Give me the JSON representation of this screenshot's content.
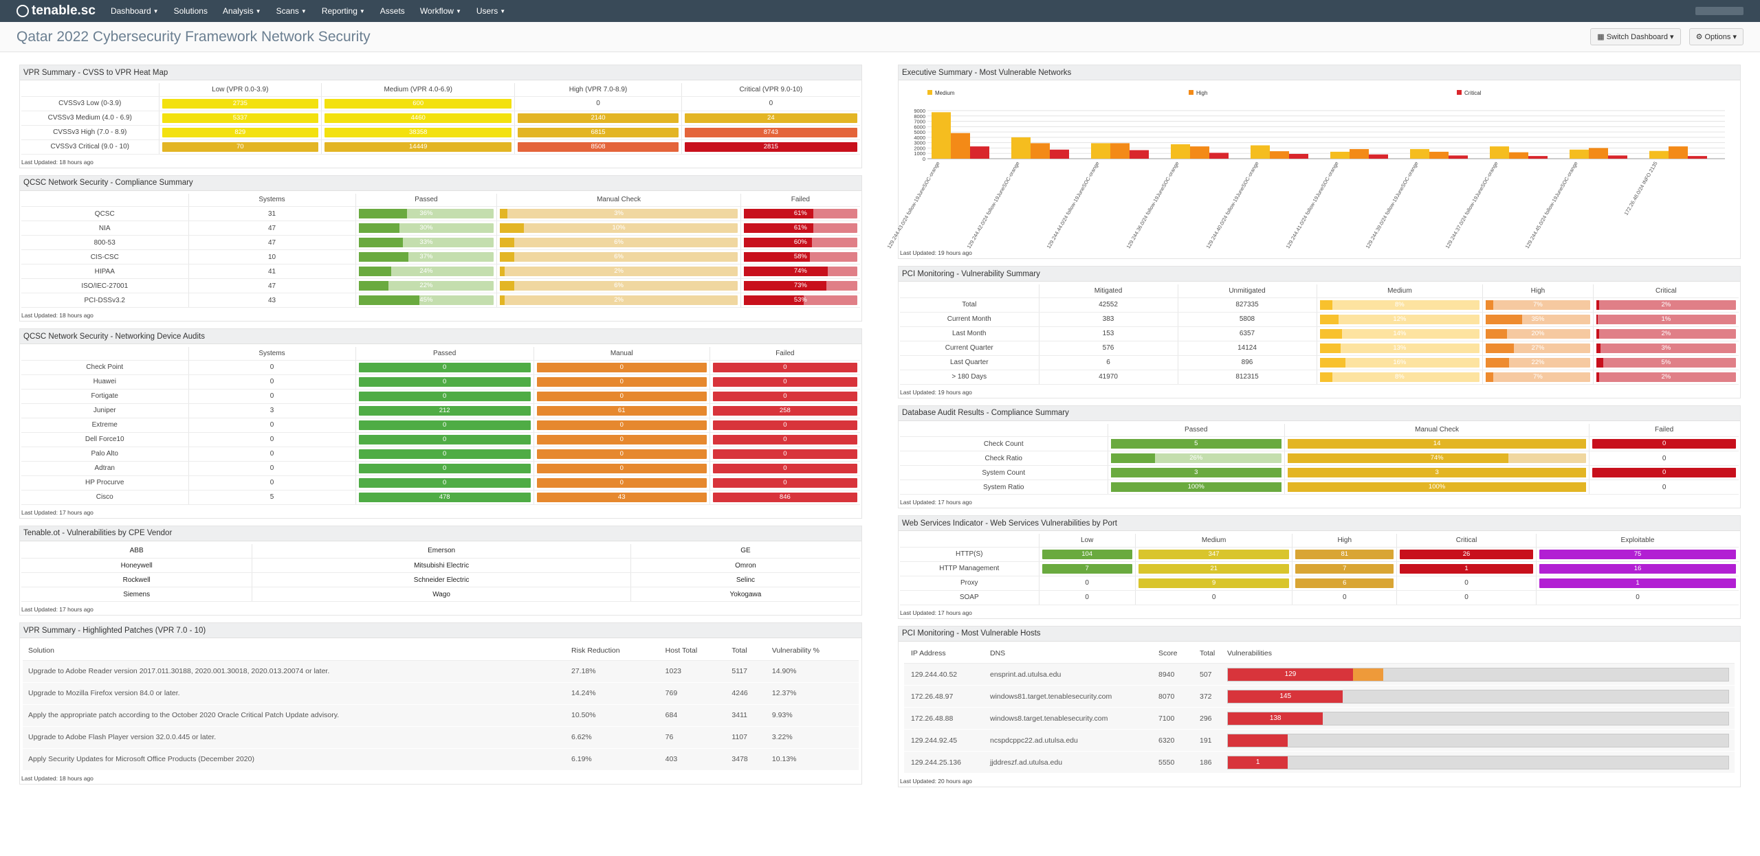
{
  "app": {
    "logo": "tenable.sc"
  },
  "nav": [
    {
      "label": "Dashboard",
      "caret": true
    },
    {
      "label": "Solutions",
      "caret": false
    },
    {
      "label": "Analysis",
      "caret": true
    },
    {
      "label": "Scans",
      "caret": true
    },
    {
      "label": "Reporting",
      "caret": true
    },
    {
      "label": "Assets",
      "caret": false
    },
    {
      "label": "Workflow",
      "caret": true
    },
    {
      "label": "Users",
      "caret": true
    }
  ],
  "page": {
    "title": "Qatar 2022 Cybersecurity Framework Network Security",
    "switch_label": "Switch Dashboard",
    "options_label": "Options"
  },
  "colors": {
    "yellow": "#f3e10f",
    "gold": "#e3b524",
    "orange": "#e4643a",
    "red": "#c8101c",
    "green": "#6aaa3f",
    "lightgreen": "#c4deae",
    "tan": "#f0d7a0",
    "pink": "#e07f87",
    "dkorange": "#e6882e",
    "purple": "#b21fd3"
  },
  "vpr_heatmap": {
    "title": "VPR Summary - CVSS to VPR Heat Map",
    "columns": [
      "",
      "Low (VPR 0.0-3.9)",
      "Medium (VPR 4.0-6.9)",
      "High (VPR 7.0-8.9)",
      "Critical (VPR 9.0-10)"
    ],
    "rows": [
      {
        "label": "CVSSv3 Low (0-3.9)",
        "cells": [
          {
            "v": "2735",
            "c": "#f3e10f"
          },
          {
            "v": "600",
            "c": "#f3e10f"
          },
          {
            "v": "0",
            "c": ""
          },
          {
            "v": "0",
            "c": ""
          }
        ]
      },
      {
        "label": "CVSSv3 Medium (4.0 - 6.9)",
        "cells": [
          {
            "v": "5337",
            "c": "#f3e10f"
          },
          {
            "v": "4460",
            "c": "#f3e10f"
          },
          {
            "v": "2140",
            "c": "#e3b524"
          },
          {
            "v": "24",
            "c": "#e3b524"
          }
        ]
      },
      {
        "label": "CVSSv3 High (7.0 - 8.9)",
        "cells": [
          {
            "v": "829",
            "c": "#f3e10f"
          },
          {
            "v": "38358",
            "c": "#f3e10f"
          },
          {
            "v": "6815",
            "c": "#e3b524"
          },
          {
            "v": "8743",
            "c": "#e4643a"
          }
        ]
      },
      {
        "label": "CVSSv3 Critical (9.0 - 10)",
        "cells": [
          {
            "v": "70",
            "c": "#e3b524"
          },
          {
            "v": "14449",
            "c": "#e3b524"
          },
          {
            "v": "8508",
            "c": "#e4643a"
          },
          {
            "v": "2815",
            "c": "#c8101c"
          }
        ]
      }
    ],
    "updated": "Last Updated: 18 hours ago"
  },
  "compliance": {
    "title": "QCSC Network Security - Compliance Summary",
    "columns": [
      "",
      "Systems",
      "Passed",
      "Manual Check",
      "Failed"
    ],
    "rows": [
      {
        "label": "QCSC",
        "systems": "31",
        "passed": "36%",
        "p": 36,
        "manual": "3%",
        "m": 3,
        "failed": "61%",
        "f": 61
      },
      {
        "label": "NIA",
        "systems": "47",
        "passed": "30%",
        "p": 30,
        "manual": "10%",
        "m": 10,
        "failed": "61%",
        "f": 61
      },
      {
        "label": "800-53",
        "systems": "47",
        "passed": "33%",
        "p": 33,
        "manual": "6%",
        "m": 6,
        "failed": "60%",
        "f": 60
      },
      {
        "label": "CIS-CSC",
        "systems": "10",
        "passed": "37%",
        "p": 37,
        "manual": "6%",
        "m": 6,
        "failed": "58%",
        "f": 58
      },
      {
        "label": "HIPAA",
        "systems": "41",
        "passed": "24%",
        "p": 24,
        "manual": "2%",
        "m": 2,
        "failed": "74%",
        "f": 74
      },
      {
        "label": "ISO/IEC-27001",
        "systems": "47",
        "passed": "22%",
        "p": 22,
        "manual": "6%",
        "m": 6,
        "failed": "73%",
        "f": 73
      },
      {
        "label": "PCI-DSSv3.2",
        "systems": "43",
        "passed": "45%",
        "p": 45,
        "manual": "2%",
        "m": 2,
        "failed": "53%",
        "f": 53
      }
    ],
    "updated": "Last Updated: 18 hours ago"
  },
  "device_audits": {
    "title": "QCSC Network Security - Networking Device Audits",
    "columns": [
      "",
      "Systems",
      "Passed",
      "Manual",
      "Failed"
    ],
    "rows": [
      {
        "label": "Check Point",
        "systems": "0",
        "passed": "0",
        "manual": "0",
        "failed": "0"
      },
      {
        "label": "Huawei",
        "systems": "0",
        "passed": "0",
        "manual": "0",
        "failed": "0"
      },
      {
        "label": "Fortigate",
        "systems": "0",
        "passed": "0",
        "manual": "0",
        "failed": "0"
      },
      {
        "label": "Juniper",
        "systems": "3",
        "passed": "212",
        "manual": "61",
        "failed": "258"
      },
      {
        "label": "Extreme",
        "systems": "0",
        "passed": "0",
        "manual": "0",
        "failed": "0"
      },
      {
        "label": "Dell Force10",
        "systems": "0",
        "passed": "0",
        "manual": "0",
        "failed": "0"
      },
      {
        "label": "Palo Alto",
        "systems": "0",
        "passed": "0",
        "manual": "0",
        "failed": "0"
      },
      {
        "label": "Adtran",
        "systems": "0",
        "passed": "0",
        "manual": "0",
        "failed": "0"
      },
      {
        "label": "HP Procurve",
        "systems": "0",
        "passed": "0",
        "manual": "0",
        "failed": "0"
      },
      {
        "label": "Cisco",
        "systems": "5",
        "passed": "478",
        "manual": "43",
        "failed": "846"
      }
    ],
    "updated": "Last Updated: 17 hours ago"
  },
  "cpe": {
    "title": "Tenable.ot - Vulnerabilities by CPE Vendor",
    "rows": [
      [
        "ABB",
        "Emerson",
        "GE"
      ],
      [
        "Honeywell",
        "Mitsubishi Electric",
        "Omron"
      ],
      [
        "Rockwell",
        "Schneider Electric",
        "Selinc"
      ],
      [
        "Siemens",
        "Wago",
        "Yokogawa"
      ]
    ],
    "updated": "Last Updated: 17 hours ago"
  },
  "patches": {
    "title": "VPR Summary - Highlighted Patches (VPR 7.0 - 10)",
    "columns": [
      "Solution",
      "Risk Reduction",
      "Host Total",
      "Total",
      "Vulnerability %"
    ],
    "rows": [
      [
        "Upgrade to Adobe Reader version 2017.011.30188, 2020.001.30018, 2020.013.20074 or later.",
        "27.18%",
        "1023",
        "5117",
        "14.90%"
      ],
      [
        "Upgrade to Mozilla Firefox version 84.0 or later.",
        "14.24%",
        "769",
        "4246",
        "12.37%"
      ],
      [
        "Apply the appropriate patch according to the October 2020 Oracle Critical Patch Update advisory.",
        "10.50%",
        "684",
        "3411",
        "9.93%"
      ],
      [
        "Upgrade to Adobe Flash Player version 32.0.0.445 or later.",
        "6.62%",
        "76",
        "1107",
        "3.22%"
      ],
      [
        "Apply Security Updates for Microsoft Office Products (December 2020)",
        "6.19%",
        "403",
        "3478",
        "10.13%"
      ]
    ],
    "updated": "Last Updated: 18 hours ago"
  },
  "exec_summary": {
    "title": "Executive Summary - Most Vulnerable Networks",
    "updated": "Last Updated: 19 hours ago"
  },
  "chart_data": {
    "type": "bar",
    "title": "Executive Summary - Most Vulnerable Networks",
    "legend": [
      "Medium",
      "High",
      "Critical"
    ],
    "legend_colors": [
      "#f5bd1f",
      "#f38a17",
      "#d9262c"
    ],
    "ylim": [
      0,
      9000
    ],
    "yticks": [
      "9000",
      "8000",
      "7000",
      "6000",
      "5000",
      "4000",
      "3000",
      "2000",
      "1000",
      "0"
    ],
    "categories": [
      "129.244.43.0/24 follow-19JuneSOC-orange",
      "129.244.42.0/24 follow-19JuneSOC-orange",
      "129.244.44.0/24 follow-19JuneSOC-orange",
      "129.244.36.0/24 follow-19JuneSOC-orange",
      "129.244.40.0/24 follow-19JuneSOC-orange",
      "129.244.41.0/24 follow-19JuneSOC-orange",
      "129.244.39.0/24 follow-19JuneSOC-orange",
      "129.244.37.0/24 follow-19JuneSOC-orange",
      "129.244.45.0/24 follow-19JuneSOC-orange",
      "172.26.48.0/24 INFO 2135"
    ],
    "series": [
      {
        "name": "Medium",
        "values": [
          8700,
          4000,
          2900,
          2700,
          2500,
          1300,
          1800,
          2300,
          1700,
          1450
        ]
      },
      {
        "name": "High",
        "values": [
          4800,
          2900,
          2900,
          2300,
          1400,
          1800,
          1300,
          1200,
          2000,
          2300
        ]
      },
      {
        "name": "Critical",
        "values": [
          2300,
          1700,
          1600,
          1100,
          900,
          800,
          600,
          500,
          600,
          500
        ]
      }
    ]
  },
  "pci_vuln": {
    "title": "PCI Monitoring - Vulnerability Summary",
    "columns": [
      "",
      "Mitigated",
      "Unmitigated",
      "Medium",
      "High",
      "Critical"
    ],
    "rows": [
      {
        "label": "Total",
        "mit": "42552",
        "unmit": "827335",
        "med": "8%",
        "m": 8,
        "high": "7%",
        "h": 7,
        "crit": "2%",
        "c": 2
      },
      {
        "label": "Current Month",
        "mit": "383",
        "unmit": "5808",
        "med": "12%",
        "m": 12,
        "high": "35%",
        "h": 35,
        "crit": "1%",
        "c": 1
      },
      {
        "label": "Last Month",
        "mit": "153",
        "unmit": "6357",
        "med": "14%",
        "m": 14,
        "high": "20%",
        "h": 20,
        "crit": "2%",
        "c": 2
      },
      {
        "label": "Current Quarter",
        "mit": "576",
        "unmit": "14124",
        "med": "13%",
        "m": 13,
        "high": "27%",
        "h": 27,
        "crit": "3%",
        "c": 3
      },
      {
        "label": "Last Quarter",
        "mit": "6",
        "unmit": "896",
        "med": "16%",
        "m": 16,
        "high": "22%",
        "h": 22,
        "crit": "5%",
        "c": 5
      },
      {
        "label": "> 180 Days",
        "mit": "41970",
        "unmit": "812315",
        "med": "8%",
        "m": 8,
        "high": "7%",
        "h": 7,
        "crit": "2%",
        "c": 2
      }
    ],
    "updated": "Last Updated: 19 hours ago"
  },
  "db_audit": {
    "title": "Database Audit Results - Compliance Summary",
    "columns": [
      "",
      "Passed",
      "Manual Check",
      "Failed"
    ],
    "rows": [
      {
        "label": "Check Count",
        "passed": "5",
        "p": 100,
        "manual": "14",
        "m": 100,
        "failed": "0",
        "f": 100
      },
      {
        "label": "Check Ratio",
        "passed": "26%",
        "p": 26,
        "manual": "74%",
        "m": 74,
        "failed": "0",
        "f": 0
      },
      {
        "label": "System Count",
        "passed": "3",
        "p": 100,
        "manual": "3",
        "m": 100,
        "failed": "0",
        "f": 100
      },
      {
        "label": "System Ratio",
        "passed": "100%",
        "p": 100,
        "manual": "100%",
        "m": 100,
        "failed": "0",
        "f": 0
      }
    ],
    "updated": "Last Updated: 17 hours ago"
  },
  "web_services": {
    "title": "Web Services Indicator - Web Services Vulnerabilities by Port",
    "columns": [
      "",
      "Low",
      "Medium",
      "High",
      "Critical",
      "Exploitable"
    ],
    "rows": [
      {
        "label": "HTTP(S)",
        "cells": [
          "104",
          "347",
          "81",
          "26",
          "75"
        ]
      },
      {
        "label": "HTTP Management",
        "cells": [
          "7",
          "21",
          "7",
          "1",
          "16"
        ]
      },
      {
        "label": "Proxy",
        "cells": [
          "0",
          "9",
          "6",
          "0",
          "1"
        ]
      },
      {
        "label": "SOAP",
        "cells": [
          "0",
          "0",
          "0",
          "0",
          "0"
        ]
      }
    ],
    "updated": "Last Updated: 17 hours ago"
  },
  "pci_hosts": {
    "title": "PCI Monitoring - Most Vulnerable Hosts",
    "columns": [
      "IP Address",
      "DNS",
      "Score",
      "Total",
      "Vulnerabilities"
    ],
    "rows": [
      {
        "ip": "129.244.40.52",
        "dns": "ensprint.ad.utulsa.edu",
        "score": "8940",
        "total": "507",
        "crit": "129",
        "c": 25,
        "h": 6
      },
      {
        "ip": "172.26.48.97",
        "dns": "windows81.target.tenablesecurity.com",
        "score": "8070",
        "total": "372",
        "crit": "145",
        "c": 23,
        "h": 0
      },
      {
        "ip": "172.26.48.88",
        "dns": "windows8.target.tenablesecurity.com",
        "score": "7100",
        "total": "296",
        "crit": "138",
        "c": 19,
        "h": 0
      },
      {
        "ip": "129.244.92.45",
        "dns": "ncspdcppc22.ad.utulsa.edu",
        "score": "6320",
        "total": "191",
        "crit": "",
        "c": 12,
        "h": 0
      },
      {
        "ip": "129.244.25.136",
        "dns": "jjddreszf.ad.utulsa.edu",
        "score": "5550",
        "total": "186",
        "crit": "1",
        "c": 12,
        "h": 0
      }
    ],
    "updated": "Last Updated: 20 hours ago"
  }
}
